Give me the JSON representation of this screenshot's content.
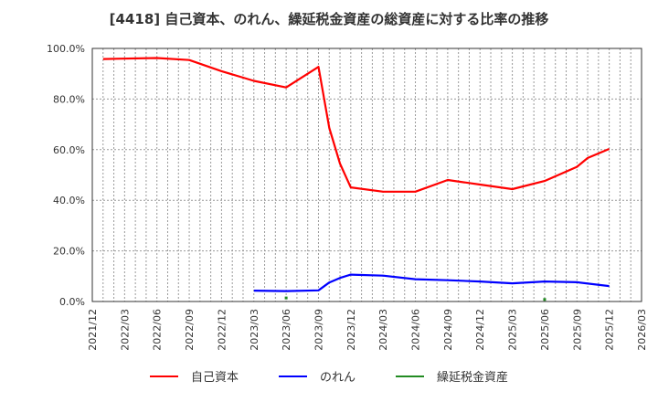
{
  "title": "[4418]  自己資本、のれん、繰延税金資産の総資産に対する比率の推移",
  "chart_data": {
    "type": "line",
    "title": "[4418]  自己資本、のれん、繰延税金資産の総資産に対する比率の推移",
    "xlabel": "",
    "ylabel": "",
    "ylim": [
      0,
      100
    ],
    "y_ticks": [
      "0.0%",
      "20.0%",
      "40.0%",
      "60.0%",
      "80.0%",
      "100.0%"
    ],
    "x_ticks": [
      "2021/12",
      "2022/03",
      "2022/06",
      "2022/09",
      "2022/12",
      "2023/03",
      "2023/06",
      "2023/09",
      "2023/12",
      "2024/03",
      "2024/06",
      "2024/09",
      "2024/12",
      "2025/03",
      "2025/06",
      "2025/09",
      "2025/12",
      "2026/03"
    ],
    "x_range": [
      "2021/12",
      "2026/03"
    ],
    "grid": true,
    "legend_position": "bottom",
    "series": [
      {
        "name": "自己資本",
        "color": "#ff0000",
        "style": "line",
        "points": [
          {
            "x": "2022/01",
            "y": 95.8
          },
          {
            "x": "2022/06",
            "y": 96.2
          },
          {
            "x": "2022/09",
            "y": 95.4
          },
          {
            "x": "2022/12",
            "y": 91.0
          },
          {
            "x": "2023/03",
            "y": 87.2
          },
          {
            "x": "2023/06",
            "y": 84.6
          },
          {
            "x": "2023/09",
            "y": 92.7
          },
          {
            "x": "2023/10",
            "y": 68.6
          },
          {
            "x": "2023/11",
            "y": 54.5
          },
          {
            "x": "2023/12",
            "y": 45.1
          },
          {
            "x": "2024/03",
            "y": 43.4
          },
          {
            "x": "2024/06",
            "y": 43.4
          },
          {
            "x": "2024/09",
            "y": 48.0
          },
          {
            "x": "2024/12",
            "y": 46.2
          },
          {
            "x": "2025/03",
            "y": 44.4
          },
          {
            "x": "2025/06",
            "y": 47.6
          },
          {
            "x": "2025/09",
            "y": 53.2
          },
          {
            "x": "2025/10",
            "y": 56.7
          },
          {
            "x": "2025/12",
            "y": 60.3
          }
        ]
      },
      {
        "name": "のれん",
        "color": "#0000ff",
        "style": "line",
        "points": [
          {
            "x": "2023/03",
            "y": 4.3
          },
          {
            "x": "2023/06",
            "y": 4.1
          },
          {
            "x": "2023/09",
            "y": 4.4
          },
          {
            "x": "2023/10",
            "y": 7.5
          },
          {
            "x": "2023/11",
            "y": 9.3
          },
          {
            "x": "2023/12",
            "y": 10.6
          },
          {
            "x": "2024/03",
            "y": 10.2
          },
          {
            "x": "2024/06",
            "y": 8.8
          },
          {
            "x": "2024/09",
            "y": 8.4
          },
          {
            "x": "2024/12",
            "y": 7.9
          },
          {
            "x": "2025/03",
            "y": 7.2
          },
          {
            "x": "2025/06",
            "y": 7.9
          },
          {
            "x": "2025/09",
            "y": 7.6
          },
          {
            "x": "2025/12",
            "y": 6.1
          }
        ]
      },
      {
        "name": "繰延税金資産",
        "color": "#228b22",
        "style": "points",
        "points": [
          {
            "x": "2023/06",
            "y": 1.4
          },
          {
            "x": "2025/06",
            "y": 0.8
          }
        ]
      }
    ]
  },
  "legend": {
    "items": [
      {
        "label": "自己資本",
        "color": "#ff0000"
      },
      {
        "label": "のれん",
        "color": "#0000ff"
      },
      {
        "label": "繰延税金資産",
        "color": "#228b22"
      }
    ]
  }
}
